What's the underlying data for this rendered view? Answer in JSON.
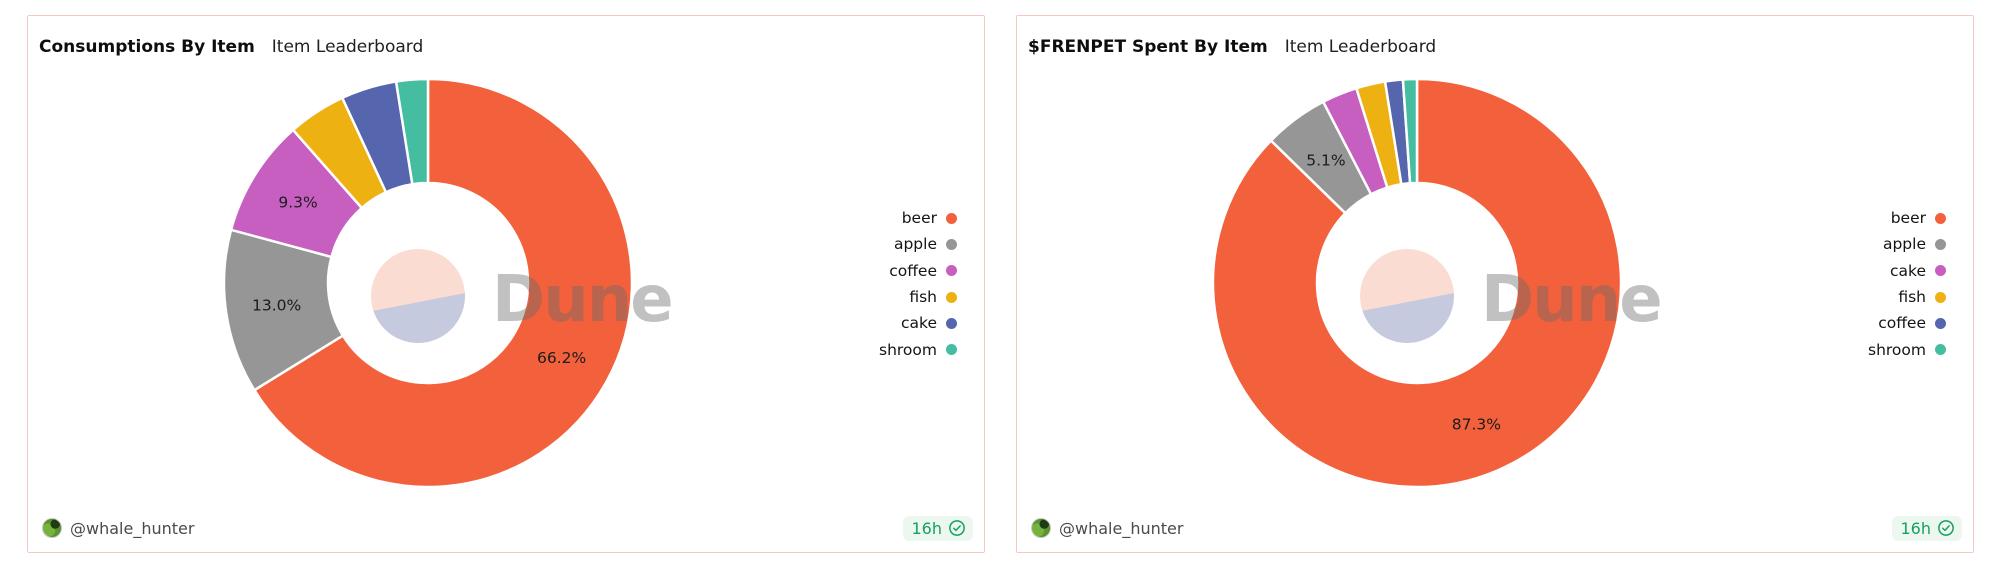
{
  "page": {
    "background": "#ffffff"
  },
  "watermark": {
    "brand": "Dune"
  },
  "panels": [
    {
      "title": "Consumptions By Item",
      "subtitle": "Item Leaderboard",
      "footer": {
        "author_handle": "@whale_hunter",
        "refreshed_age": "16h"
      }
    },
    {
      "title": "$FRENPET Spent By Item",
      "subtitle": "Item Leaderboard",
      "footer": {
        "author_handle": "@whale_hunter",
        "refreshed_age": "16h"
      }
    }
  ],
  "chart_data": [
    {
      "type": "pie",
      "subtype": "donut",
      "title": "Consumptions By Item",
      "legend_position": "right",
      "unit": "%",
      "start_angle_deg": 0,
      "direction": "clockwise",
      "slices": [
        {
          "name": "beer",
          "value": 66.2,
          "label": "66.2%",
          "color": "#F2603C"
        },
        {
          "name": "apple",
          "value": 13.0,
          "label": "13.0%",
          "color": "#969696"
        },
        {
          "name": "coffee",
          "value": 9.3,
          "label": "9.3%",
          "color": "#C75FC1"
        },
        {
          "name": "fish",
          "value": 4.6,
          "label": "",
          "color": "#EDB112"
        },
        {
          "name": "cake",
          "value": 4.4,
          "label": "",
          "color": "#5565AE"
        },
        {
          "name": "shroom",
          "value": 2.5,
          "label": "",
          "color": "#45BDA1"
        }
      ]
    },
    {
      "type": "pie",
      "subtype": "donut",
      "title": "$FRENPET Spent By Item",
      "legend_position": "right",
      "unit": "%",
      "start_angle_deg": 0,
      "direction": "clockwise",
      "slices": [
        {
          "name": "beer",
          "value": 87.3,
          "label": "87.3%",
          "color": "#F2603C"
        },
        {
          "name": "apple",
          "value": 5.1,
          "label": "5.1%",
          "color": "#969696"
        },
        {
          "name": "cake",
          "value": 2.8,
          "label": "",
          "color": "#C75FC1"
        },
        {
          "name": "fish",
          "value": 2.3,
          "label": "",
          "color": "#EDB112"
        },
        {
          "name": "coffee",
          "value": 1.4,
          "label": "",
          "color": "#5565AE"
        },
        {
          "name": "shroom",
          "value": 1.1,
          "label": "",
          "color": "#45BDA1"
        }
      ]
    }
  ]
}
